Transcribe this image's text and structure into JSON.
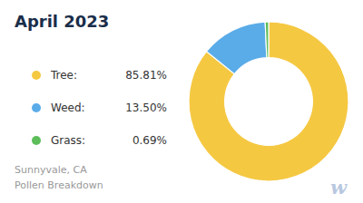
{
  "chart_data": {
    "type": "donut",
    "title": "April 2023",
    "subtitle": "Sunnyvale, CA\nPollen Breakdown",
    "categories": [
      "Tree:",
      "Weed:",
      "Grass:"
    ],
    "values": [
      85.81,
      13.5,
      0.69
    ],
    "value_labels": [
      "85.81%",
      "13.50%",
      "0.69%"
    ],
    "colors": [
      "#f5c842",
      "#5aace8",
      "#5dbd5a"
    ],
    "legend": "left",
    "annotations": [
      "w"
    ]
  }
}
